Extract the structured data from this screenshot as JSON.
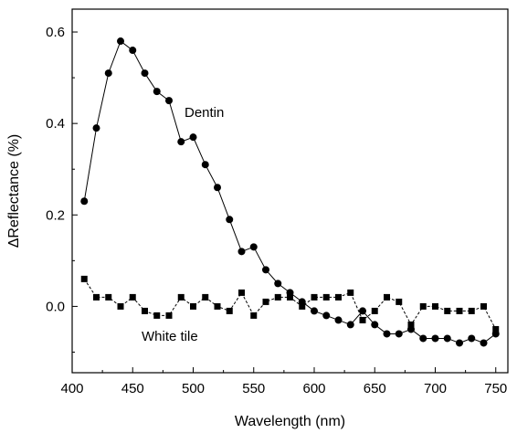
{
  "chart_data": {
    "type": "line",
    "xlabel": "Wavelength (nm)",
    "ylabel": "ΔReflectance (%)",
    "xlim": [
      400,
      760
    ],
    "ylim": [
      -0.145,
      0.65
    ],
    "x_ticks": [
      400,
      450,
      500,
      550,
      600,
      650,
      700,
      750
    ],
    "y_ticks": [
      0.0,
      0.2,
      0.4,
      0.6
    ],
    "x_tick_labels": [
      "400",
      "450",
      "500",
      "550",
      "600",
      "650",
      "700",
      "750"
    ],
    "y_tick_labels": [
      "0.0",
      "0.2",
      "0.4",
      "0.6"
    ],
    "grid": false,
    "annotations": {
      "dentin": "Dentin",
      "white_tile": "White tile"
    },
    "series": [
      {
        "name": "Dentin",
        "marker": "circle",
        "line": "solid",
        "x": [
          410,
          420,
          430,
          440,
          450,
          460,
          470,
          480,
          490,
          500,
          510,
          520,
          530,
          540,
          550,
          560,
          570,
          580,
          590,
          600,
          610,
          620,
          630,
          640,
          650,
          660,
          670,
          680,
          690,
          700,
          710,
          720,
          730,
          740,
          750
        ],
        "y": [
          0.23,
          0.39,
          0.51,
          0.58,
          0.56,
          0.51,
          0.47,
          0.45,
          0.36,
          0.37,
          0.31,
          0.26,
          0.19,
          0.12,
          0.13,
          0.08,
          0.05,
          0.03,
          0.01,
          -0.01,
          -0.02,
          -0.03,
          -0.04,
          -0.01,
          -0.04,
          -0.06,
          -0.06,
          -0.05,
          -0.07,
          -0.07,
          -0.07,
          -0.08,
          -0.07,
          -0.08,
          -0.06
        ]
      },
      {
        "name": "White tile",
        "marker": "square",
        "line": "dashed",
        "x": [
          410,
          420,
          430,
          440,
          450,
          460,
          470,
          480,
          490,
          500,
          510,
          520,
          530,
          540,
          550,
          560,
          570,
          580,
          590,
          600,
          610,
          620,
          630,
          640,
          650,
          660,
          670,
          680,
          690,
          700,
          710,
          720,
          730,
          740,
          750
        ],
        "y": [
          0.06,
          0.02,
          0.02,
          0.0,
          0.02,
          -0.01,
          -0.02,
          -0.02,
          0.02,
          0.0,
          0.02,
          0.0,
          -0.01,
          0.03,
          -0.02,
          0.01,
          0.02,
          0.02,
          0.0,
          0.02,
          0.02,
          0.02,
          0.03,
          -0.03,
          -0.01,
          0.02,
          0.01,
          -0.04,
          0.0,
          0.0,
          -0.01,
          -0.01,
          -0.01,
          0.0,
          -0.05
        ]
      }
    ]
  }
}
